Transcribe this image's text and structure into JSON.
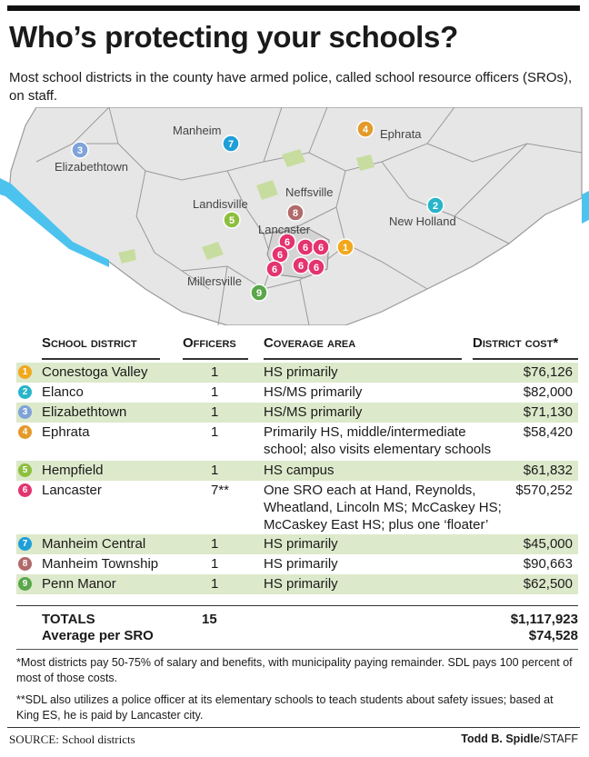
{
  "header": {
    "title": "Who’s protecting your schools?",
    "subtitle": "Most school districts in the county have armed police, called school resource officers (SROs), on staff."
  },
  "colors": {
    "conestoga": "#f2a81d",
    "elanco": "#27b5c9",
    "elizabethtown": "#7ea3d8",
    "ephrata": "#e49a2a",
    "hempfield": "#8dbf3f",
    "lancaster": "#e4346f",
    "manheim_central": "#1f9fd8",
    "manheim_township": "#b06a6a",
    "penn_manor": "#5aa64a",
    "map_land": "#e6e6e6",
    "map_park": "#c7dd9f",
    "river": "#4cc3ef",
    "table_shade": "#dde9cb"
  },
  "map": {
    "labels": {
      "manheim": "Manheim",
      "ephrata": "Ephrata",
      "elizabethtown": "Elizabethtown",
      "neffsville": "Neffsville",
      "landisville": "Landisville",
      "new_holland": "New Holland",
      "lancaster": "Lancaster",
      "millersville": "Millersville"
    },
    "markers": [
      "7",
      "4",
      "3",
      "8",
      "2",
      "5",
      "1",
      "6",
      "6",
      "6",
      "6",
      "6",
      "6",
      "6",
      "9"
    ]
  },
  "table": {
    "headers": {
      "district": "School district",
      "officers": "Officers",
      "coverage": "Coverage area",
      "cost": "District cost*"
    },
    "rows": [
      {
        "num": "1",
        "district": "Conestoga Valley",
        "officers": "1",
        "coverage": [
          "HS primarily"
        ],
        "cost": "$76,126"
      },
      {
        "num": "2",
        "district": "Elanco",
        "officers": "1",
        "coverage": [
          "HS/MS primarily"
        ],
        "cost": "$82,000"
      },
      {
        "num": "3",
        "district": "Elizabethtown",
        "officers": "1",
        "coverage": [
          "HS/MS primarily"
        ],
        "cost": "$71,130"
      },
      {
        "num": "4",
        "district": "Ephrata",
        "officers": "1",
        "coverage": [
          "Primarily HS, middle/intermediate",
          "school; also visits elementary schools"
        ],
        "cost": "$58,420"
      },
      {
        "num": "5",
        "district": "Hempfield",
        "officers": "1",
        "coverage": [
          "HS campus"
        ],
        "cost": "$61,832"
      },
      {
        "num": "6",
        "district": "Lancaster",
        "officers": "7**",
        "coverage": [
          "One SRO each at Hand, Reynolds,",
          "Wheatland, Lincoln MS; McCaskey HS;",
          "McCaskey East HS; plus one ‘floater’"
        ],
        "cost": "$570,252"
      },
      {
        "num": "7",
        "district": "Manheim Central",
        "officers": "1",
        "coverage": [
          "HS primarily"
        ],
        "cost": "$45,000"
      },
      {
        "num": "8",
        "district": "Manheim Township",
        "officers": "1",
        "coverage": [
          "HS primarily"
        ],
        "cost": "$90,663"
      },
      {
        "num": "9",
        "district": "Penn Manor",
        "officers": "1",
        "coverage": [
          "HS primarily"
        ],
        "cost": "$62,500"
      }
    ],
    "totals": {
      "label": "TOTALS",
      "officers": "15",
      "cost": "$1,117,923",
      "average_label": "Average per SRO",
      "average_cost": "$74,528"
    }
  },
  "notes": {
    "note1": "*Most districts pay 50-75% of salary and benefits, with municipality paying remainder. SDL pays 100 percent of most of those costs.",
    "note2": "**SDL also utilizes a police officer at its elementary schools to teach students about safety issues; based at King ES, he is paid by Lancaster city."
  },
  "footer": {
    "source": "SOURCE:  School districts",
    "credit_name": "Todd B. Spidle",
    "credit_suffix": "/STAFF"
  }
}
